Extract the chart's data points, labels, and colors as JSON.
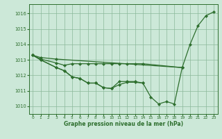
{
  "background_color": "#cce8d8",
  "grid_color": "#8ab89a",
  "line_color": "#2d6e2d",
  "marker_color": "#2d6e2d",
  "title": "Graphe pression niveau de la mer (hPa)",
  "xlim": [
    -0.5,
    23.5
  ],
  "ylim": [
    1009.5,
    1016.6
  ],
  "yticks": [
    1010,
    1011,
    1012,
    1013,
    1014,
    1015,
    1016
  ],
  "xticks": [
    0,
    1,
    2,
    3,
    4,
    5,
    6,
    7,
    8,
    9,
    10,
    11,
    12,
    13,
    14,
    15,
    16,
    17,
    18,
    19,
    20,
    21,
    22,
    23
  ],
  "series1_x": [
    0,
    1,
    3,
    19,
    20,
    21,
    22,
    23
  ],
  "series1_y": [
    1013.3,
    1013.15,
    1013.05,
    1012.5,
    1014.0,
    1015.2,
    1015.85,
    1016.1
  ],
  "series2_x": [
    0,
    1,
    3,
    4,
    5,
    6,
    7,
    8,
    9,
    10,
    11,
    12,
    13,
    14,
    19
  ],
  "series2_y": [
    1013.3,
    1013.05,
    1012.8,
    1012.65,
    1012.75,
    1012.75,
    1012.75,
    1012.75,
    1012.75,
    1012.75,
    1012.75,
    1012.75,
    1012.75,
    1012.75,
    1012.5
  ],
  "series3_x": [
    0,
    1,
    3,
    4,
    5,
    6,
    7,
    8,
    9,
    10,
    11,
    12,
    13,
    14
  ],
  "series3_y": [
    1013.3,
    1013.0,
    1012.5,
    1012.3,
    1011.9,
    1011.8,
    1011.5,
    1011.5,
    1011.2,
    1011.15,
    1011.6,
    1011.6,
    1011.6,
    1011.5
  ],
  "series4_x": [
    0,
    1,
    3,
    4,
    5,
    6,
    7,
    8,
    9,
    10,
    11,
    12,
    13,
    14,
    15,
    16,
    17,
    18,
    19
  ],
  "series4_y": [
    1013.3,
    1013.0,
    1012.5,
    1012.3,
    1011.9,
    1011.8,
    1011.5,
    1011.5,
    1011.2,
    1011.15,
    1011.4,
    1011.55,
    1011.55,
    1011.5,
    1010.6,
    1010.15,
    1010.3,
    1010.15,
    1012.5
  ]
}
